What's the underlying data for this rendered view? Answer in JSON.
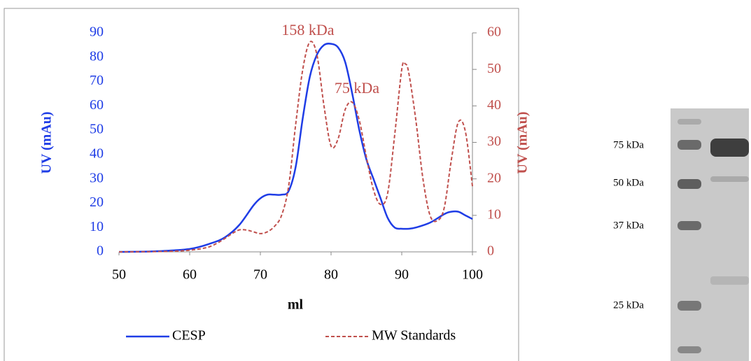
{
  "chart_data": {
    "type": "line",
    "xlabel": "ml",
    "ylabel": "UV (mAu)",
    "y2label": "UV (mAu)",
    "xlim": [
      50,
      100
    ],
    "xticks": [
      50,
      60,
      70,
      80,
      90,
      100
    ],
    "ylim": [
      0,
      90
    ],
    "yticks": [
      0,
      10,
      20,
      30,
      40,
      50,
      60,
      70,
      80,
      90
    ],
    "y2lim": [
      0,
      60
    ],
    "y2ticks": [
      0,
      10,
      20,
      30,
      40,
      50,
      60
    ],
    "legend": "bottom",
    "annotations": [
      "158 kDa",
      "75 kDa"
    ],
    "series": [
      {
        "name": "CESP",
        "color": "#1f3de6",
        "dash": false,
        "x": [
          50,
          55,
          60,
          63,
          65,
          67,
          69,
          70,
          71,
          72,
          73,
          74,
          75,
          76,
          77,
          78,
          79,
          80,
          81,
          82,
          83,
          84,
          85,
          86,
          87,
          88,
          89,
          90,
          91,
          92,
          94,
          96,
          97,
          98,
          99,
          100
        ],
        "values": [
          0,
          0.2,
          1.2,
          3.5,
          6,
          11,
          19,
          22,
          23.5,
          23.5,
          23.5,
          25,
          35,
          55,
          72,
          81,
          85,
          85.5,
          84,
          78,
          65,
          50,
          38,
          30,
          22,
          14,
          10,
          9.5,
          9.5,
          10,
          12,
          15.5,
          16.5,
          16.5,
          15,
          13.5
        ]
      },
      {
        "name": "MW Standards",
        "color": "#c0504d",
        "dash": true,
        "axis": "y2",
        "x": [
          50,
          58,
          62,
          64,
          66,
          67,
          68,
          69,
          70,
          71,
          72,
          73,
          74,
          75,
          76,
          77,
          78,
          79,
          80,
          81,
          82,
          83,
          84,
          85,
          86,
          87,
          88,
          89,
          90,
          90.5,
          91,
          92,
          93,
          94,
          95,
          96,
          97,
          98,
          99,
          100
        ],
        "values": [
          0,
          0.2,
          1,
          2.5,
          5,
          6,
          6,
          5.5,
          5,
          5.5,
          7,
          10,
          18,
          35,
          50,
          57.5,
          54,
          40,
          29,
          31,
          39,
          41,
          36,
          26,
          17,
          13,
          16,
          32,
          50,
          51.5,
          49,
          36,
          20,
          10,
          8.5,
          12,
          25,
          35.5,
          33,
          18
        ]
      }
    ]
  },
  "gel": {
    "labels": [
      "75 kDa",
      "50 kDa",
      "37 kDa",
      "25 kDa"
    ]
  }
}
